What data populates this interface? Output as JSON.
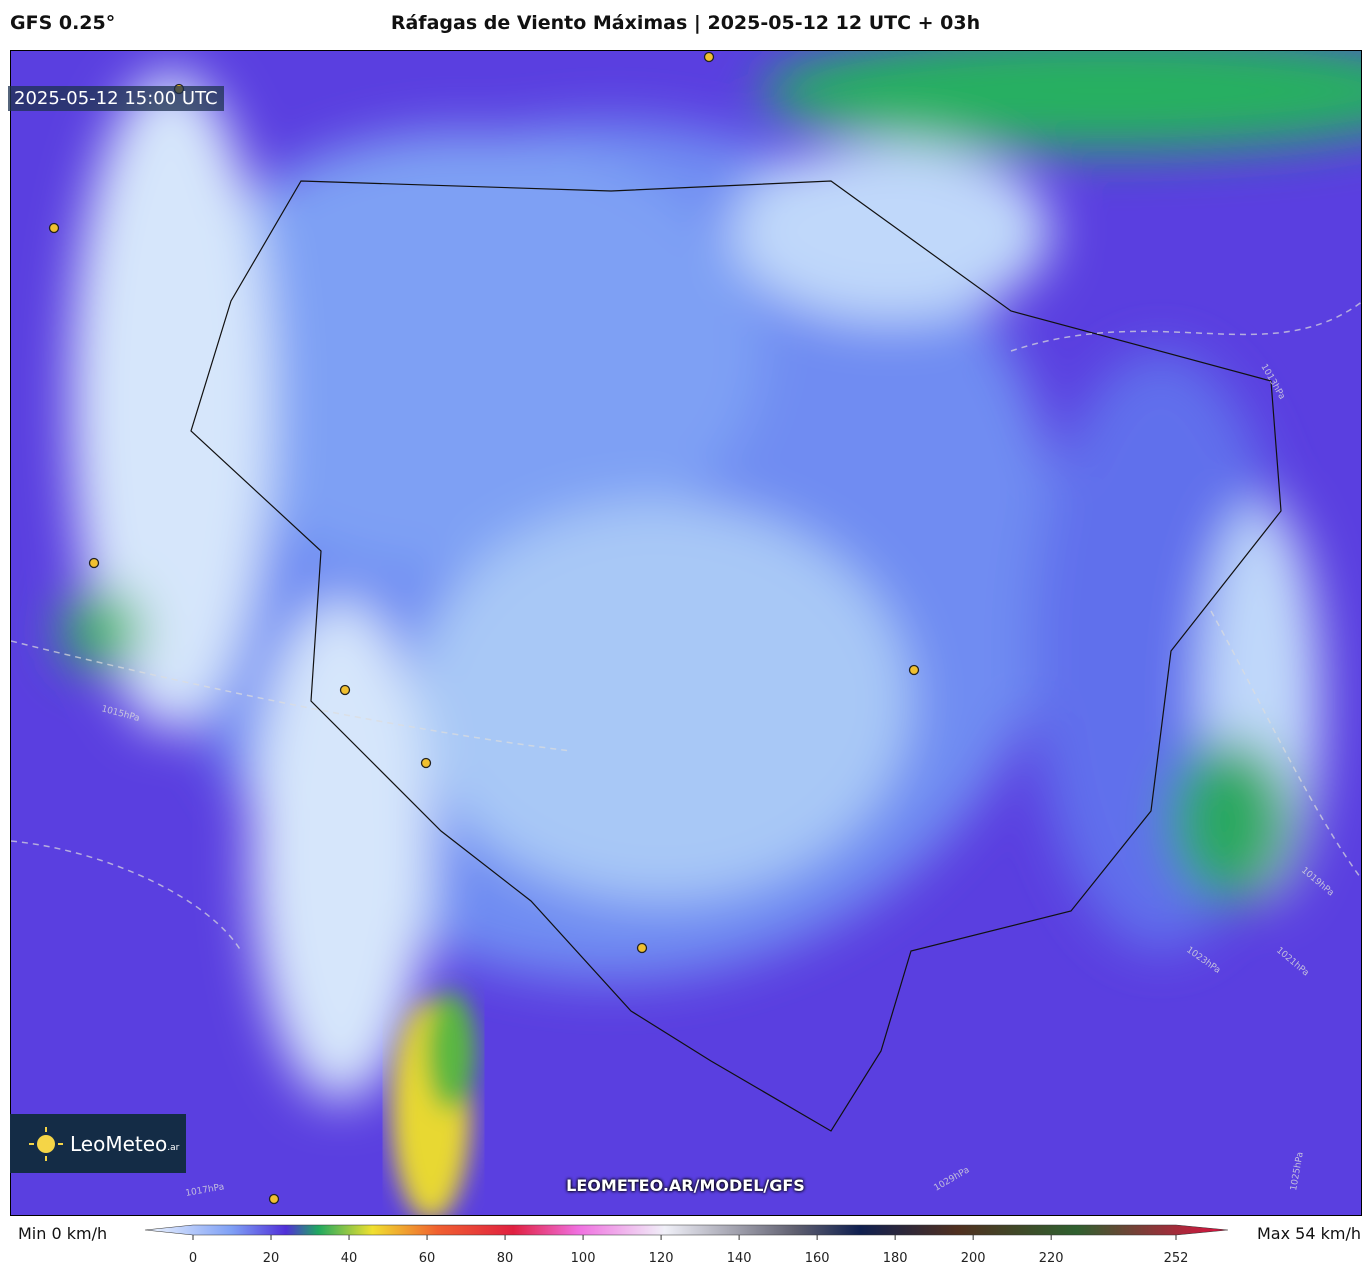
{
  "header": {
    "model": "GFS 0.25°",
    "title": "Ráfagas de Viento Máximas | 2025-05-12 12 UTC + 03h"
  },
  "map": {
    "timestamp": "2025-05-12 15:00 UTC",
    "logo": {
      "name": "LeoMeteo",
      "suffix": ".ar"
    },
    "url": "LEOMETEO.AR/MODEL/GFS",
    "isobars": [
      "1013hPa",
      "1015hPa",
      "1017hPa",
      "1019hPa",
      "1021hPa",
      "1023hPa",
      "1025hPa",
      "1029hPa"
    ]
  },
  "colorbar": {
    "min_label": "Min 0 km/h",
    "max_label": "Max 54 km/h",
    "ticks": [
      0,
      20,
      40,
      60,
      80,
      100,
      120,
      140,
      160,
      180,
      200,
      220,
      252
    ]
  }
}
